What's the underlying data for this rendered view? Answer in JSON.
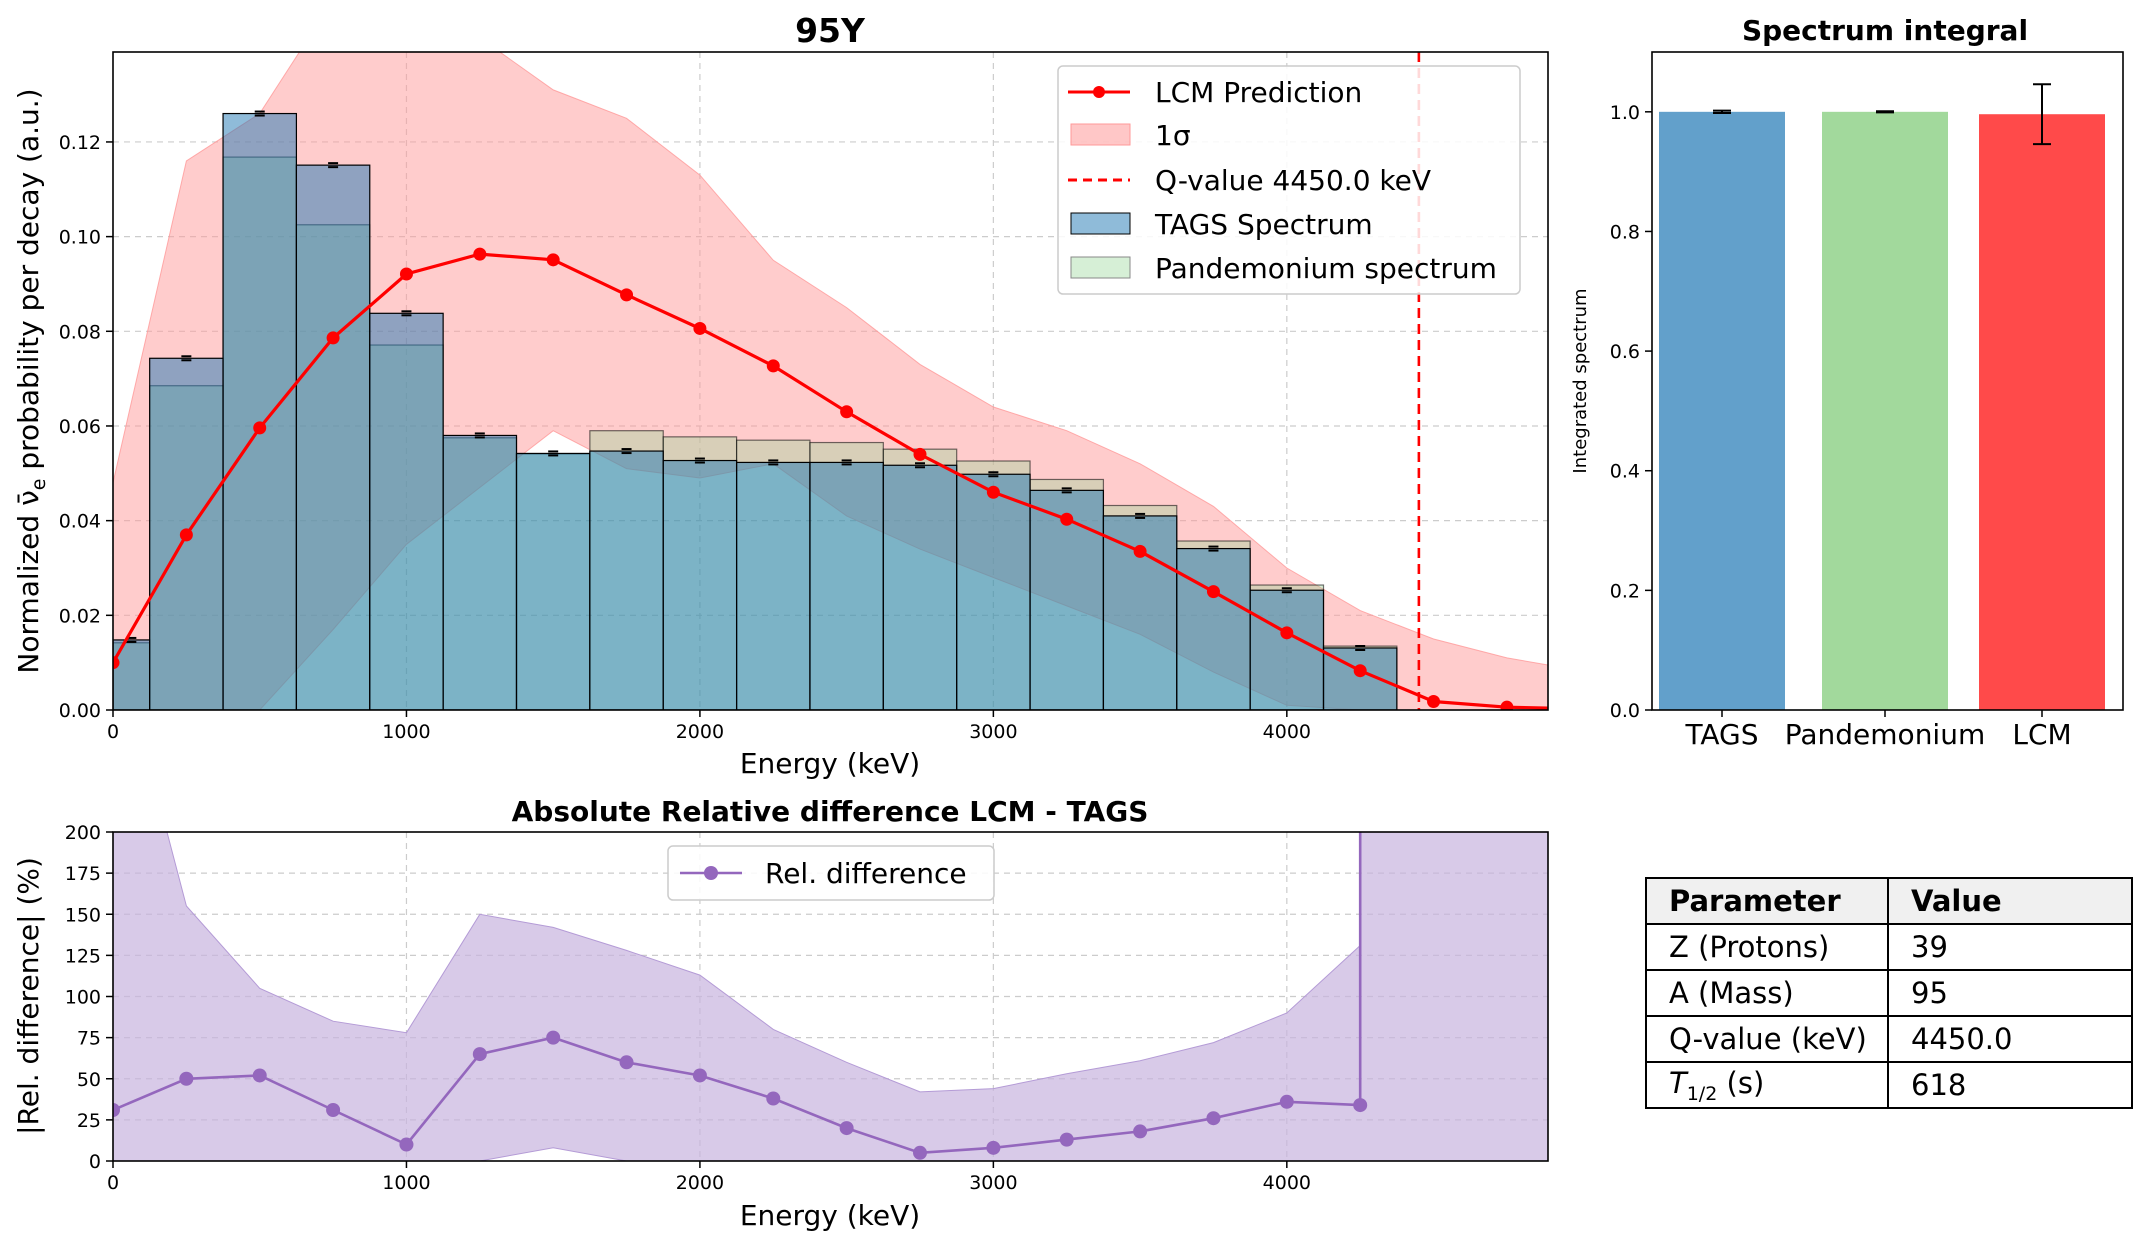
{
  "chart_data": [
    {
      "id": "main",
      "type": "bar",
      "title": "95Y",
      "xlabel": "Energy (keV)",
      "ylabel": "Normalized ν̄e probability per decay (a.u.)",
      "xlim": [
        0,
        4890
      ],
      "ylim": [
        0,
        0.139
      ],
      "xticks": [
        "0",
        "1000",
        "2000",
        "3000",
        "4000"
      ],
      "yticks": [
        "0.00",
        "0.02",
        "0.04",
        "0.06",
        "0.08",
        "0.10",
        "0.12"
      ],
      "grid": true,
      "legend_position": "top-right",
      "legend": [
        "LCM Prediction",
        "1σ",
        "Q-value 4450.0 keV",
        "TAGS Spectrum",
        "Pandemonium spectrum"
      ],
      "bin_edges": [
        0,
        125,
        375,
        625,
        875,
        1125,
        1375,
        1625,
        1875,
        2125,
        2375,
        2625,
        2875,
        3125,
        3375,
        3625,
        3875,
        4125,
        4375
      ],
      "tags_spectrum": {
        "name": "TAGS Spectrum",
        "color": "#1f77b4",
        "values": [
          0.0148,
          0.0743,
          0.126,
          0.1151,
          0.0838,
          0.058,
          0.0542,
          0.0547,
          0.0527,
          0.0523,
          0.0523,
          0.0517,
          0.0498,
          0.0464,
          0.041,
          0.0341,
          0.0253,
          0.0131
        ]
      },
      "pandemonium_spectrum": {
        "name": "Pandemonium spectrum",
        "color": "#98d698",
        "values": [
          0.0142,
          0.0685,
          0.1168,
          0.1025,
          0.0771,
          0.0575,
          0.0541,
          0.059,
          0.0577,
          0.057,
          0.0565,
          0.0551,
          0.0526,
          0.0487,
          0.0432,
          0.0357,
          0.0264,
          0.0135
        ]
      },
      "lcm_prediction": {
        "name": "LCM Prediction",
        "color": "#ff0000",
        "x": [
          0,
          250,
          500,
          750,
          1000,
          1250,
          1500,
          1750,
          2000,
          2250,
          2500,
          2750,
          3000,
          3250,
          3500,
          3750,
          4000,
          4250,
          4500,
          4750,
          4890
        ],
        "y": [
          0.01,
          0.037,
          0.0596,
          0.0786,
          0.0921,
          0.0963,
          0.0951,
          0.0877,
          0.0806,
          0.0727,
          0.063,
          0.054,
          0.046,
          0.0403,
          0.0335,
          0.025,
          0.0163,
          0.0083,
          0.0018,
          0.0006,
          0.0004
        ]
      },
      "one_sigma_band": {
        "name": "1σ",
        "color": "#ff9999",
        "x": [
          0,
          250,
          500,
          750,
          1000,
          1250,
          1500,
          1750,
          2000,
          2250,
          2500,
          2750,
          3000,
          3250,
          3500,
          3750,
          4000,
          4250,
          4500,
          4750,
          4890
        ],
        "upper": [
          0.048,
          0.116,
          0.126,
          0.15,
          0.155,
          0.142,
          0.131,
          0.125,
          0.113,
          0.095,
          0.085,
          0.073,
          0.064,
          0.059,
          0.052,
          0.043,
          0.03,
          0.021,
          0.015,
          0.011,
          0.0095
        ],
        "lower": [
          0,
          0,
          0,
          0.017,
          0.035,
          0.047,
          0.059,
          0.051,
          0.049,
          0.052,
          0.041,
          0.034,
          0.028,
          0.022,
          0.016,
          0.008,
          0.001,
          0,
          0,
          0,
          0
        ]
      },
      "q_value": 4450.0
    },
    {
      "id": "integral",
      "type": "bar",
      "title": "Spectrum integral",
      "ylabel": "Integrated spectrum",
      "categories": [
        "TAGS",
        "Pandemonium",
        "LCM"
      ],
      "values": [
        1.0,
        1.0,
        0.996
      ],
      "errors": [
        0.002,
        0.001,
        0.05
      ],
      "colors": [
        "#62a0cb",
        "#a2d99c",
        "#ff4a4a"
      ],
      "ylim": [
        0,
        1.1
      ],
      "yticks": [
        "0.0",
        "0.2",
        "0.4",
        "0.6",
        "0.8",
        "1.0"
      ]
    },
    {
      "id": "reldiff",
      "type": "line",
      "title": "Absolute Relative difference LCM - TAGS",
      "xlabel": "Energy (keV)",
      "ylabel": "|Rel. difference| (%)",
      "xlim": [
        0,
        4890
      ],
      "ylim": [
        0,
        200
      ],
      "xticks": [
        "0",
        "1000",
        "2000",
        "3000",
        "4000"
      ],
      "yticks": [
        "0",
        "25",
        "50",
        "75",
        "100",
        "125",
        "150",
        "175",
        "200"
      ],
      "grid": true,
      "legend_position": "top-center",
      "legend": [
        "Rel. difference"
      ],
      "series": [
        {
          "name": "Rel. difference",
          "color": "#9467bd",
          "x": [
            0,
            250,
            500,
            750,
            1000,
            1250,
            1500,
            1750,
            2000,
            2250,
            2500,
            2750,
            3000,
            3250,
            3500,
            3750,
            4000,
            4250
          ],
          "y": [
            31,
            50,
            52,
            31,
            10,
            65,
            75,
            60,
            52,
            38,
            20,
            5,
            8,
            13,
            18,
            26,
            36,
            34
          ]
        }
      ],
      "band": {
        "color": "#c8b3de",
        "x": [
          0,
          125,
          250,
          500,
          750,
          1000,
          1250,
          1500,
          1750,
          2000,
          2250,
          2500,
          2750,
          3000,
          3250,
          3500,
          3750,
          4000,
          4250,
          4251,
          4890
        ],
        "upper": [
          270,
          240,
          155,
          105,
          85,
          78,
          150,
          142,
          128,
          113,
          80,
          60,
          42,
          44,
          53,
          61,
          72,
          90,
          131,
          200,
          200
        ],
        "lower": [
          0,
          0,
          0,
          0,
          0,
          0,
          0,
          8,
          0,
          0,
          0,
          0,
          0,
          0,
          0,
          0,
          0,
          0,
          0,
          0,
          0
        ]
      },
      "spike_x": 4250
    }
  ],
  "parameter_table": {
    "headers": [
      "Parameter",
      "Value"
    ],
    "rows": [
      [
        "Z (Protons)",
        "39"
      ],
      [
        "A (Mass)",
        "95"
      ],
      [
        "Q-value (keV)",
        "4450.0"
      ],
      [
        "T1/2 (s)",
        "618"
      ]
    ],
    "half_life_symbol": "T",
    "half_life_sub": "1/2",
    "half_life_unit": "(s)"
  }
}
